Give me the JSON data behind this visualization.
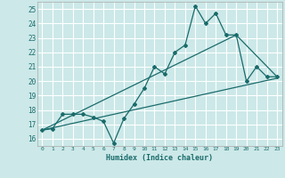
{
  "xlabel": "Humidex (Indice chaleur)",
  "background_color": "#cce8e8",
  "grid_color": "#ffffff",
  "line_color": "#1a6b6b",
  "xlim": [
    -0.5,
    23.5
  ],
  "ylim": [
    15.5,
    25.5
  ],
  "xticks": [
    0,
    1,
    2,
    3,
    4,
    5,
    6,
    7,
    8,
    9,
    10,
    11,
    12,
    13,
    14,
    15,
    16,
    17,
    18,
    19,
    20,
    21,
    22,
    23
  ],
  "yticks": [
    16,
    17,
    18,
    19,
    20,
    21,
    22,
    23,
    24,
    25
  ],
  "series1_x": [
    0,
    1,
    2,
    3,
    4,
    5,
    6,
    7,
    8,
    9,
    10,
    11,
    12,
    13,
    14,
    15,
    16,
    17,
    18,
    19,
    20,
    21,
    22,
    23
  ],
  "series1_y": [
    16.6,
    16.7,
    17.7,
    17.7,
    17.7,
    17.5,
    17.2,
    15.7,
    17.4,
    18.4,
    19.5,
    21.0,
    20.5,
    22.0,
    22.5,
    25.2,
    24.0,
    24.7,
    23.2,
    23.2,
    20.0,
    21.0,
    20.3,
    20.3
  ],
  "series2_x": [
    0,
    23
  ],
  "series2_y": [
    16.6,
    20.2
  ],
  "series3_x": [
    0,
    19,
    23
  ],
  "series3_y": [
    16.6,
    23.2,
    20.3
  ]
}
